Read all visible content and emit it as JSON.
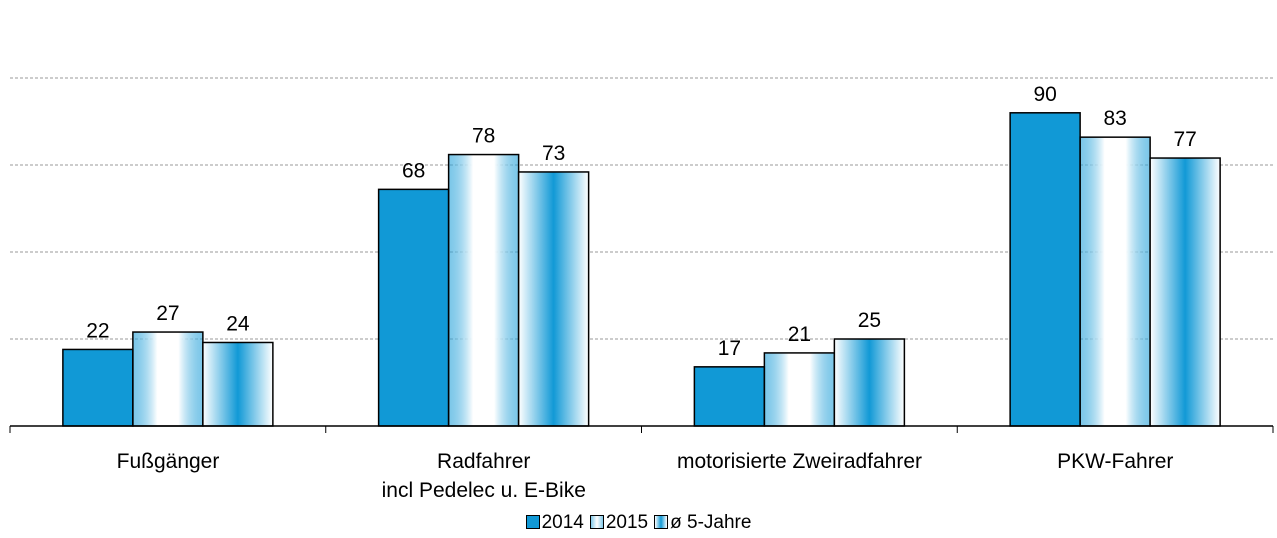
{
  "chart_data": {
    "type": "bar",
    "categories": [
      "Fußgänger",
      "Radfahrer\nincl Pedelec u. E-Bike",
      "motorisierte Zweiradfahrer",
      "PKW-Fahrer"
    ],
    "series": [
      {
        "name": "2014",
        "color": "#1199d6",
        "pattern": "solid",
        "values": [
          22,
          68,
          17,
          90
        ]
      },
      {
        "name": "2015",
        "color": "#1199d6",
        "pattern": "edge",
        "values": [
          27,
          78,
          21,
          83
        ]
      },
      {
        "name": "ø 5-Jahre",
        "color": "#1199d6",
        "pattern": "center",
        "values": [
          24,
          73,
          25,
          77
        ]
      }
    ],
    "ylim": [
      0,
      100
    ],
    "yticks": [
      0,
      25,
      50,
      75,
      100
    ],
    "grid": true,
    "legend": "bottom"
  }
}
